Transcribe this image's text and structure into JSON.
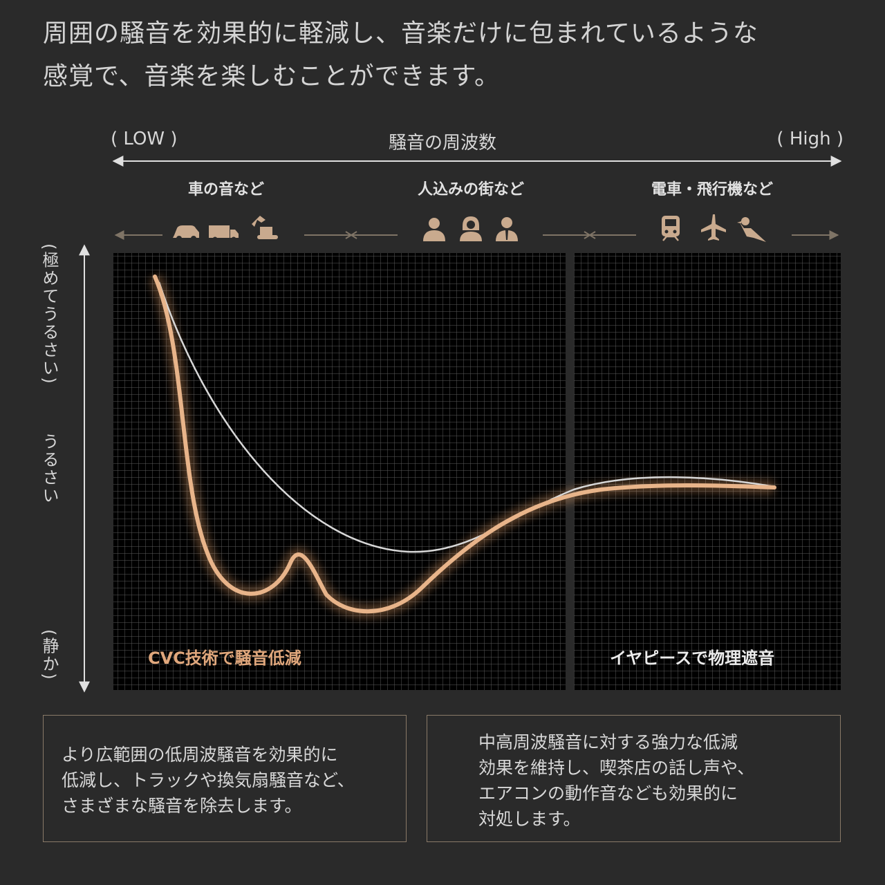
{
  "intro": {
    "line1": "周囲の騒音を効果的に軽減し、音楽だけに包まれているような",
    "line2": "感覚で、音楽を楽しむことができます。"
  },
  "chart_data": {
    "type": "line",
    "x_axis": {
      "title": "騒音の周波数",
      "low_label": "( LOW )",
      "high_label": "( High )"
    },
    "y_axis": {
      "labels": [
        "(極めてうるさい)",
        "うるさい",
        "(静か)"
      ]
    },
    "categories": [
      {
        "label": "車の音など",
        "icons": [
          "car-icon",
          "truck-icon",
          "excavator-icon"
        ]
      },
      {
        "label": "人込みの街など",
        "icons": [
          "person-icon",
          "woman-icon",
          "businessman-icon"
        ]
      },
      {
        "label": "電車・飛行機など",
        "icons": [
          "train-icon",
          "airplane-icon",
          "bird-icon"
        ]
      }
    ],
    "regions": [
      {
        "label": "CVC技術で騒音低減",
        "color": "#e0a77c"
      },
      {
        "label": "イヤピースで物理遮音",
        "color": "#ececec"
      }
    ],
    "colors": {
      "gold": "#e8b48a",
      "white": "#d8d8d8"
    }
  },
  "boxes": [
    {
      "lines": [
        "より広範囲の低周波騒音を効果的に",
        "低減し、トラックや換気扇騒音など、",
        "さまざまな騒音を除去します。"
      ]
    },
    {
      "lines": [
        "中高周波騒音に対する強力な低減",
        "効果を維持し、喫茶店の話し声や、",
        "エアコンの動作音なども効果的に",
        "対処します。"
      ]
    }
  ]
}
